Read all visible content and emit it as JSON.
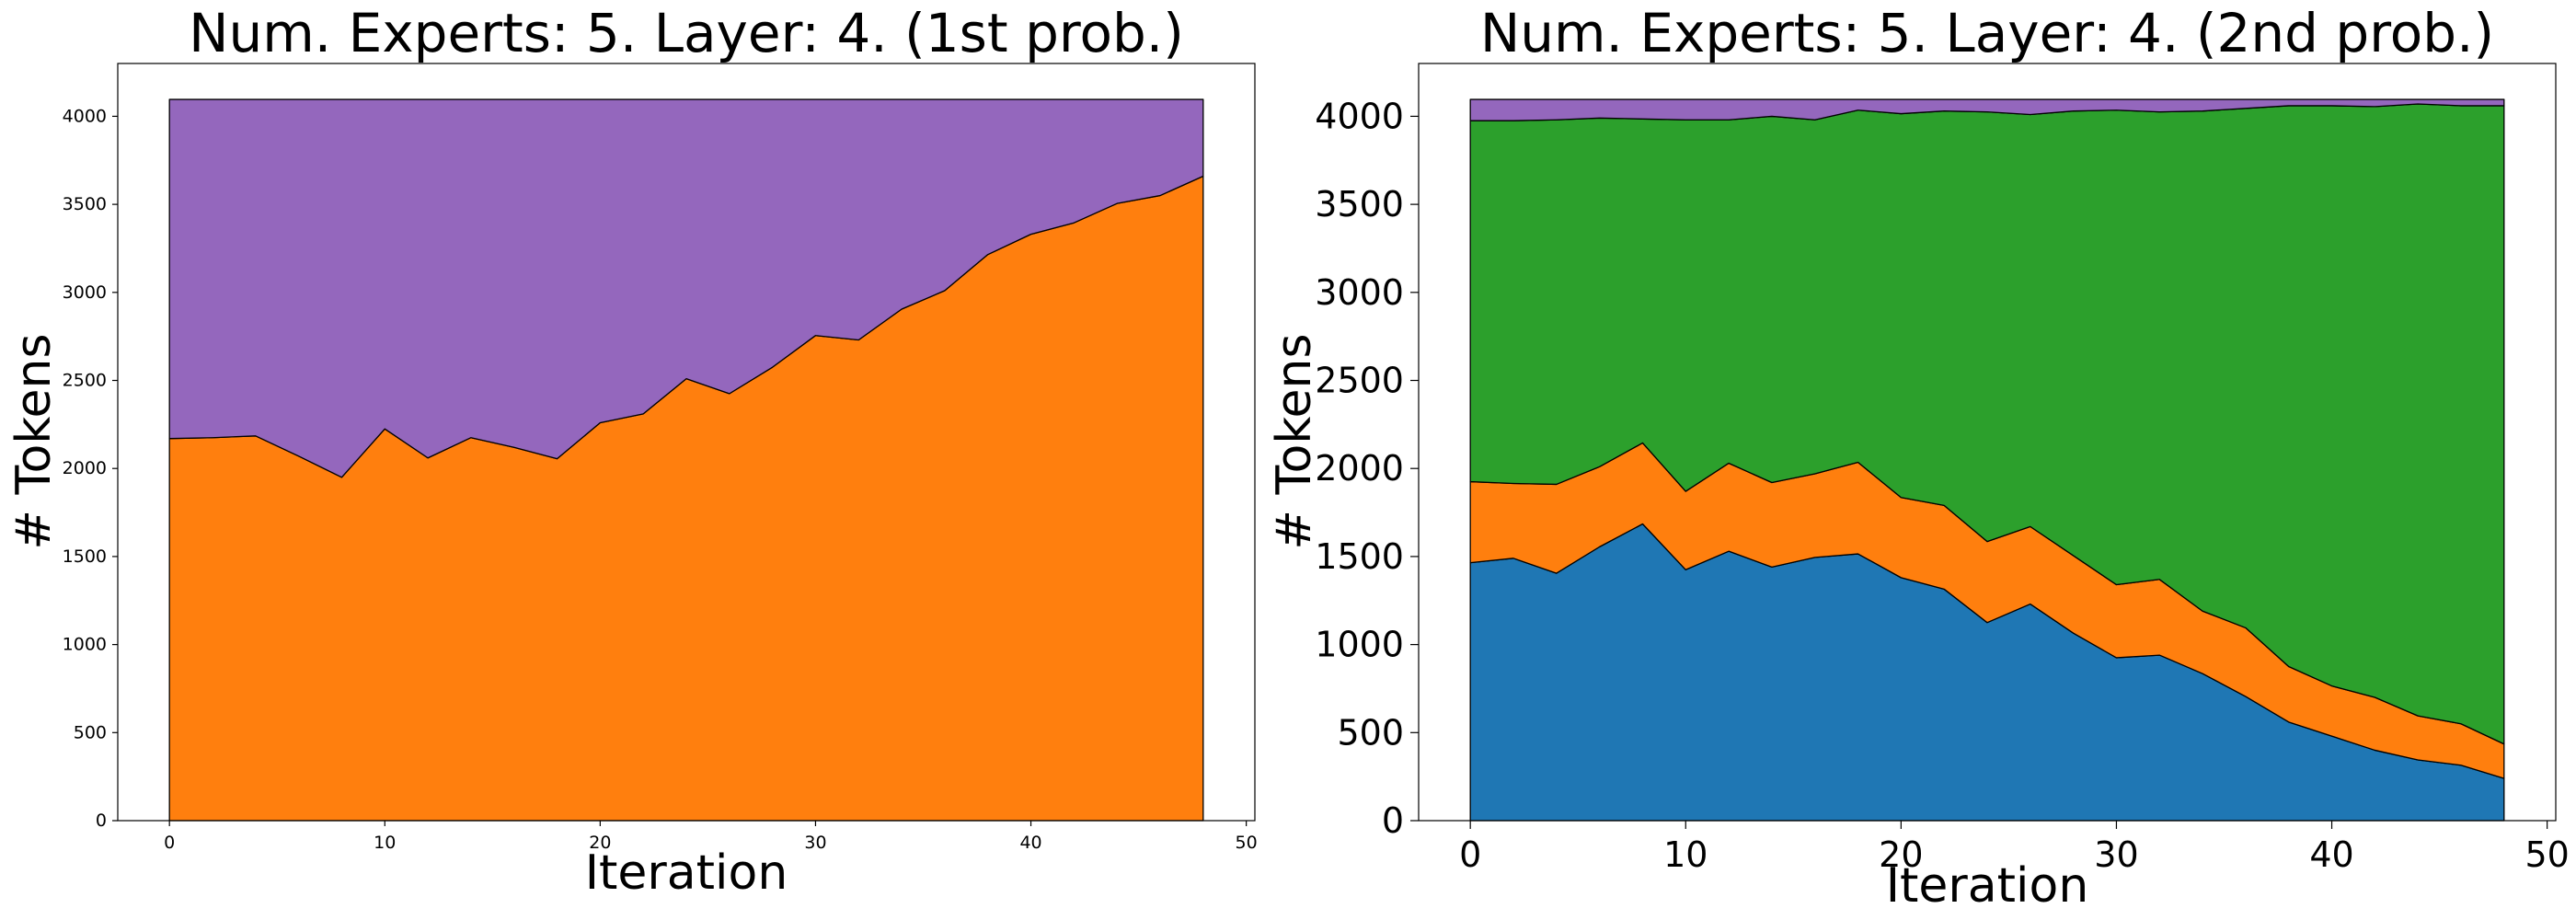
{
  "chart_data": [
    {
      "type": "area",
      "stacked": true,
      "title": "Num. Experts: 5. Layer: 4. (1st prob.)",
      "xlabel": "Iteration",
      "ylabel": "# Tokens",
      "xlim": [
        -2.4,
        50.4
      ],
      "ylim": [
        0,
        4300
      ],
      "xticks": [
        0,
        10,
        20,
        30,
        40,
        50
      ],
      "yticks": [
        0,
        500,
        1000,
        1500,
        2000,
        2500,
        3000,
        3500,
        4000
      ],
      "x": [
        0,
        2,
        4,
        6,
        8,
        10,
        12,
        14,
        16,
        18,
        20,
        22,
        24,
        26,
        28,
        30,
        32,
        34,
        36,
        38,
        40,
        42,
        44,
        46,
        48
      ],
      "series": [
        {
          "color": "#ff7f0e",
          "values": [
            2170,
            2175,
            2185,
            2070,
            1950,
            2225,
            2060,
            2175,
            2120,
            2055,
            2260,
            2310,
            2510,
            2425,
            2575,
            2755,
            2730,
            2905,
            3010,
            3215,
            3330,
            3395,
            3505,
            3550,
            3660
          ]
        },
        {
          "color": "#9467bd",
          "values": [
            1926,
            1921,
            1911,
            2026,
            2146,
            1871,
            2036,
            1921,
            1976,
            2041,
            1836,
            1786,
            1586,
            1671,
            1521,
            1341,
            1366,
            1191,
            1086,
            881,
            766,
            701,
            591,
            546,
            436
          ]
        }
      ]
    },
    {
      "type": "area",
      "stacked": true,
      "title": "Num. Experts: 5. Layer: 4. (2nd prob.)",
      "xlabel": "Iteration",
      "ylabel": "# Tokens",
      "xlim": [
        -2.4,
        50.4
      ],
      "ylim": [
        0,
        4300
      ],
      "xticks": [
        0,
        10,
        20,
        30,
        40,
        50
      ],
      "yticks": [
        0,
        500,
        1000,
        1500,
        2000,
        2500,
        3000,
        3500,
        4000
      ],
      "x": [
        0,
        2,
        4,
        6,
        8,
        10,
        12,
        14,
        16,
        18,
        20,
        22,
        24,
        26,
        28,
        30,
        32,
        34,
        36,
        38,
        40,
        42,
        44,
        46,
        48
      ],
      "series": [
        {
          "color": "#1f77b4",
          "values": [
            1465,
            1490,
            1405,
            1555,
            1685,
            1425,
            1530,
            1440,
            1495,
            1515,
            1380,
            1315,
            1125,
            1230,
            1065,
            925,
            940,
            835,
            705,
            560,
            480,
            400,
            345,
            315,
            240
          ]
        },
        {
          "color": "#ff7f0e",
          "values": [
            460,
            425,
            505,
            455,
            460,
            445,
            500,
            480,
            475,
            520,
            455,
            475,
            460,
            440,
            440,
            415,
            430,
            355,
            390,
            315,
            285,
            300,
            250,
            235,
            195
          ]
        },
        {
          "color": "#2ca02c",
          "values": [
            2050,
            2060,
            2070,
            1980,
            1840,
            2110,
            1950,
            2080,
            2010,
            2000,
            2180,
            2240,
            2440,
            2340,
            2525,
            2695,
            2655,
            2840,
            2950,
            3185,
            3295,
            3355,
            3475,
            3510,
            3625
          ]
        },
        {
          "color": "#9467bd",
          "values": [
            121,
            121,
            116,
            106,
            111,
            116,
            116,
            96,
            116,
            61,
            81,
            66,
            71,
            86,
            66,
            61,
            71,
            66,
            51,
            36,
            36,
            41,
            26,
            36,
            36
          ]
        }
      ]
    }
  ]
}
